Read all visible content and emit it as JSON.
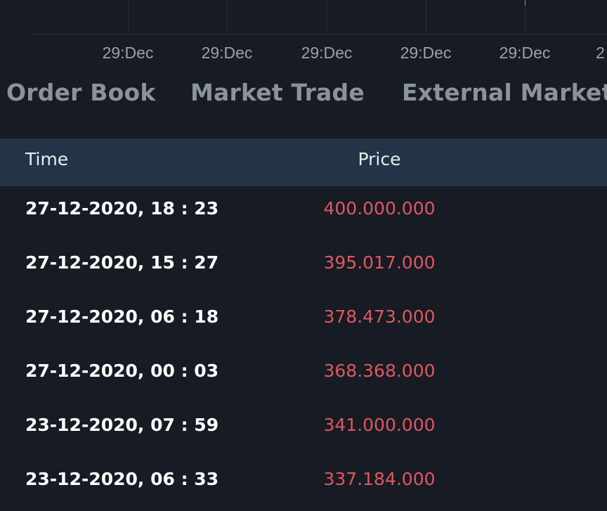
{
  "chart": {
    "x_tick_labels": [
      "29:Dec",
      "29:Dec",
      "29:Dec",
      "29:Dec",
      "29:Dec",
      "2"
    ]
  },
  "tabs": [
    {
      "label": "Order Book"
    },
    {
      "label": "Market Trade"
    },
    {
      "label": "External Market"
    }
  ],
  "table": {
    "columns": {
      "time": "Time",
      "price": "Price"
    },
    "rows": [
      {
        "time": "27-12-2020, 18 : 23",
        "price": "400.000.000"
      },
      {
        "time": "27-12-2020, 15 : 27",
        "price": "395.017.000"
      },
      {
        "time": "27-12-2020, 06 : 18",
        "price": "378.473.000"
      },
      {
        "time": "27-12-2020, 00 : 03",
        "price": "368.368.000"
      },
      {
        "time": "23-12-2020, 07 : 59",
        "price": "341.000.000"
      },
      {
        "time": "23-12-2020, 06 : 33",
        "price": "337.184.000"
      }
    ]
  },
  "colors": {
    "background": "#161b24",
    "header_background": "#243447",
    "price_down": "#e0575f",
    "tab_text": "#8b929b",
    "axis_text": "#9aa0a8"
  }
}
